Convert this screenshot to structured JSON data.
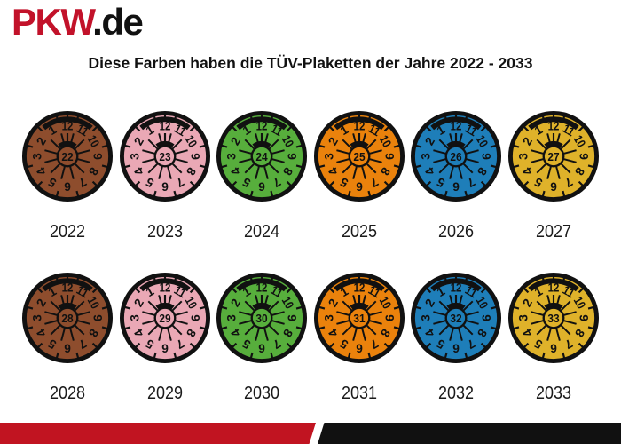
{
  "logo": {
    "brand": "PKW",
    "tld": ".de",
    "brand_color": "#C2122A",
    "tld_color": "#111111"
  },
  "title": "Diese Farben haben die TÜV-Plaketten der Jahre 2022 - 2033",
  "plakette": {
    "dial_numbers": [
      "12",
      "11",
      "10",
      "9",
      "8",
      "7",
      "6",
      "5",
      "4",
      "3",
      "2",
      "1"
    ],
    "line_color": "#111111"
  },
  "rows": [
    {
      "badges": [
        {
          "year": "2022",
          "center": "22",
          "color_name": "brown",
          "color": "#8E4D2D"
        },
        {
          "year": "2023",
          "center": "23",
          "color_name": "pink",
          "color": "#EAA8B5"
        },
        {
          "year": "2024",
          "center": "24",
          "color_name": "green",
          "color": "#57AE3C"
        },
        {
          "year": "2025",
          "center": "25",
          "color_name": "orange",
          "color": "#EA820C"
        },
        {
          "year": "2026",
          "center": "26",
          "color_name": "blue",
          "color": "#1E7EB9"
        },
        {
          "year": "2027",
          "center": "27",
          "color_name": "yellow",
          "color": "#DFB22A"
        }
      ]
    },
    {
      "badges": [
        {
          "year": "2028",
          "center": "28",
          "color_name": "brown",
          "color": "#8E4D2D"
        },
        {
          "year": "2029",
          "center": "29",
          "color_name": "pink",
          "color": "#EAA8B5"
        },
        {
          "year": "2030",
          "center": "30",
          "color_name": "green",
          "color": "#57AE3C"
        },
        {
          "year": "2031",
          "center": "31",
          "color_name": "orange",
          "color": "#EA820C"
        },
        {
          "year": "2032",
          "center": "32",
          "color_name": "blue",
          "color": "#1E7EB9"
        },
        {
          "year": "2033",
          "center": "33",
          "color_name": "yellow",
          "color": "#DFB22A"
        }
      ]
    }
  ],
  "footer": {
    "red": "#C11421",
    "black": "#111111"
  }
}
